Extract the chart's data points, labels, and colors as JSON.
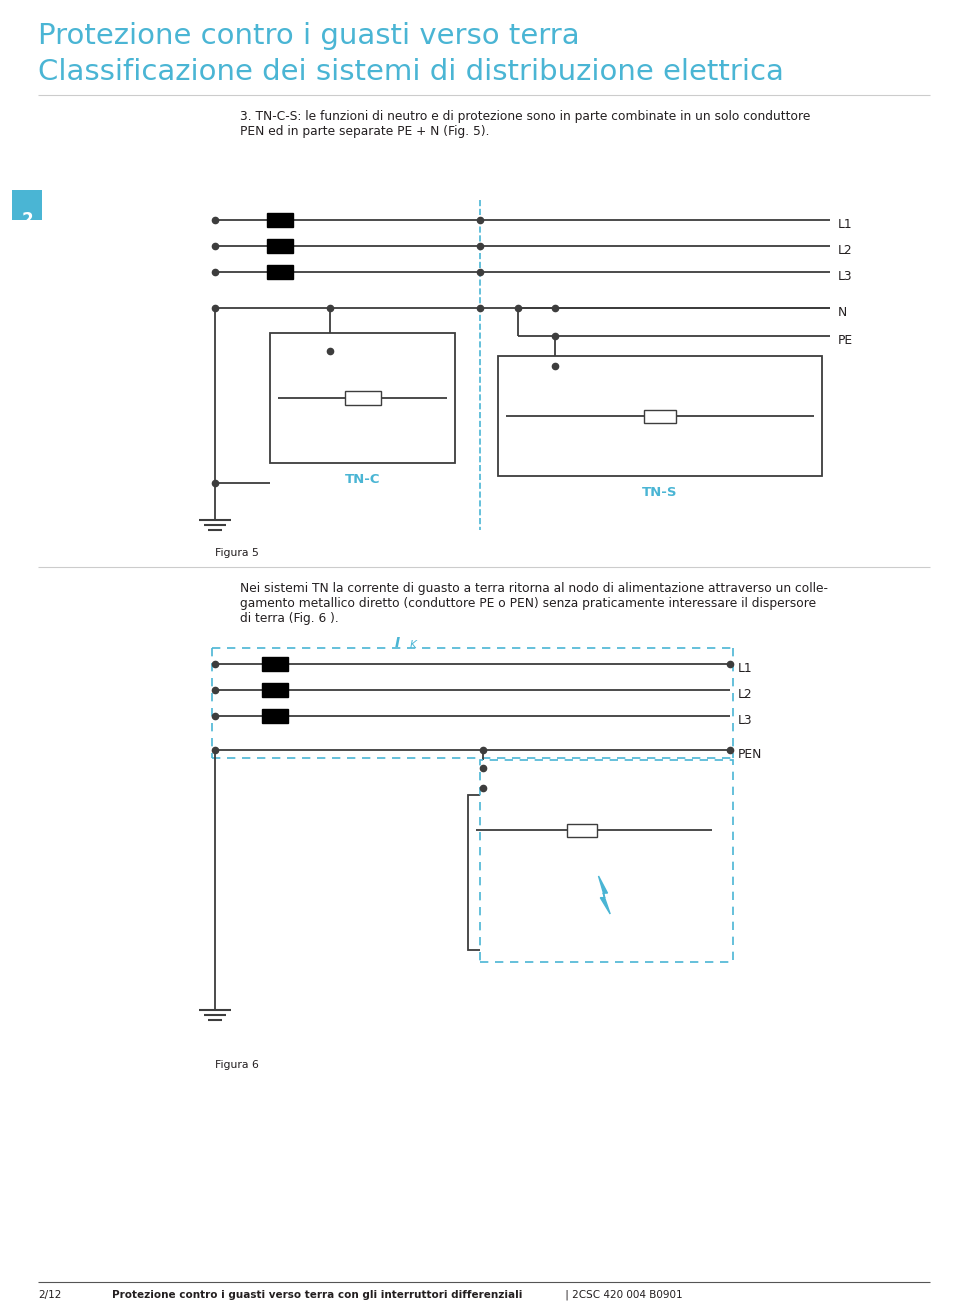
{
  "title_line1": "Protezione contro i guasti verso terra",
  "title_line2": "Classificazione dei sistemi di distribuzione elettrica",
  "title_color": "#4ab5d4",
  "body_text1": "3. TN-C-S: le funzioni di neutro e di protezione sono in parte combinate in un solo conduttore\nPEN ed in parte separate PE + N (Fig. 5).",
  "body_text2": "Nei sistemi TN la corrente di guasto a terra ritorna al nodo di alimentazione attraverso un colle-\ngamento metallico diretto (conduttore PE o PEN) senza praticamente interessare il dispersore\ndi terra (Fig. 6 ).",
  "fig5_label": "Figura 5",
  "fig6_label": "Figura 6",
  "tn_c_label": "TN-C",
  "tn_s_label": "TN-S",
  "ik_label": "I",
  "ik_sub": "K",
  "num_label": "2",
  "footer_bold": "Protezione contro i guasti verso terra con gli interruttori differenziali",
  "footer_normal": " | 2CSC 420 004 B0901",
  "footer_page": "2/12",
  "cyan_color": "#4ab5d4",
  "dark_color": "#231f20",
  "line_color": "#3d3d3d",
  "bg_color": "#ffffff"
}
